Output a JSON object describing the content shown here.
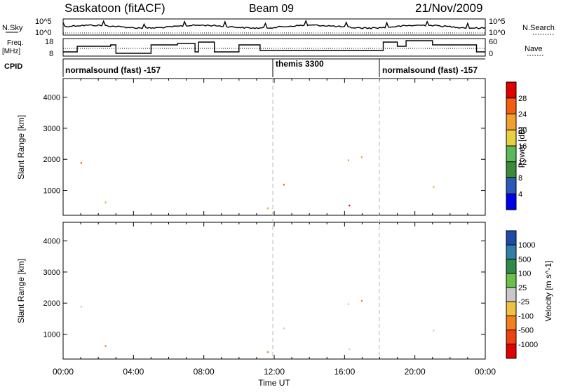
{
  "header": {
    "station": "Saskatoon (fitACF)",
    "beam": "Beam 09",
    "date": "21/Nov/2009"
  },
  "side_labels": {
    "nsky": "N.Sky",
    "freq_top": "Freq.",
    "freq_unit": "[MHz]",
    "cpid": "CPID",
    "nsearch": "N.Search",
    "nave": "Nave"
  },
  "top_panels": {
    "noise_ticks": [
      "10^5",
      "10^0"
    ],
    "noise_right_ticks": [
      "10^5",
      "10^0"
    ],
    "freq_ticks": [
      "18",
      "8"
    ],
    "nave_ticks": [
      "60",
      "0"
    ]
  },
  "cpid_segments": [
    {
      "label": "normalsound (fast) -157",
      "start_hour": 0
    },
    {
      "label": "themis 3300",
      "start_hour": 12
    },
    {
      "label": "normalsound (fast) -157",
      "start_hour": 18.1
    }
  ],
  "chart_data": [
    {
      "type": "heatmap",
      "name": "power",
      "xlabel": "Time UT",
      "ylabel": "Slant Range [km]",
      "x_ticks": [
        "00:00",
        "04:00",
        "08:00",
        "12:00",
        "16:00",
        "20:00",
        "00:00"
      ],
      "y_ticks": [
        "1000",
        "2000",
        "3000",
        "4000"
      ],
      "xlim_hours": [
        0,
        24
      ],
      "ylim_km": [
        200,
        4600
      ],
      "colorbar": {
        "label": "Power [dB]",
        "ticks": [
          "4",
          "8",
          "12",
          "16",
          "20",
          "24",
          "28"
        ],
        "colors": [
          "#0000e8",
          "#2a5ab8",
          "#3a8a3a",
          "#5cb85c",
          "#e8d040",
          "#f0a030",
          "#f06010",
          "#e00000"
        ]
      }
    },
    {
      "type": "heatmap",
      "name": "velocity",
      "xlabel": "Time UT",
      "ylabel": "Slant Range [km]",
      "x_ticks": [
        "00:00",
        "04:00",
        "08:00",
        "12:00",
        "16:00",
        "20:00",
        "00:00"
      ],
      "y_ticks": [
        "1000",
        "2000",
        "3000",
        "4000"
      ],
      "xlim_hours": [
        0,
        24
      ],
      "ylim_km": [
        200,
        4600
      ],
      "colorbar": {
        "label": "Velocity [m s^-1]",
        "ticks": [
          "1000",
          "500",
          "100",
          "25",
          "-25",
          "-100",
          "-500",
          "-1000"
        ],
        "colors": [
          "#1f4aa8",
          "#2f7fa8",
          "#2f8a4a",
          "#6cc04a",
          "#c8c8c8",
          "#f0c040",
          "#f08020",
          "#f04010",
          "#e00000"
        ]
      }
    }
  ]
}
